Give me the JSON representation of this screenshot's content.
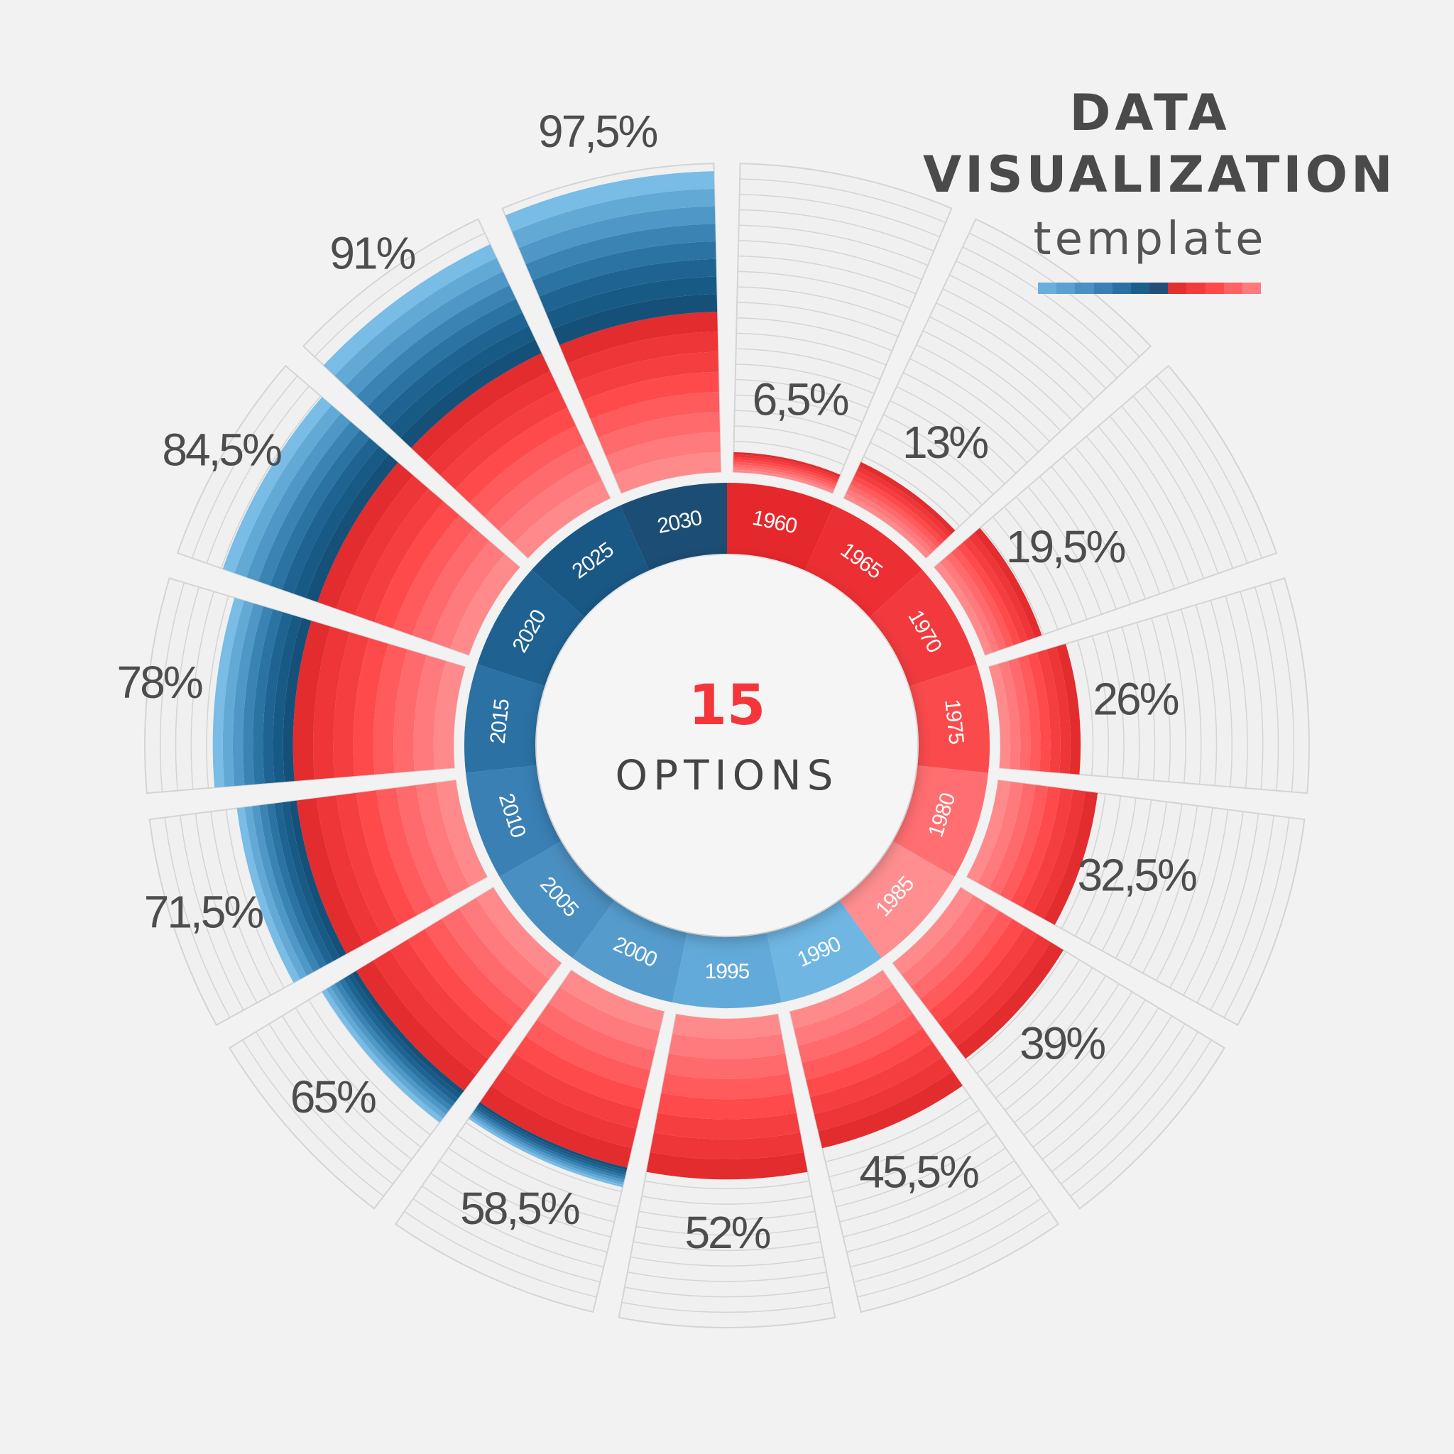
{
  "title": {
    "line1": "DATA",
    "line2": "VISUALIZATION",
    "line3": "template"
  },
  "legend_stripe_colors": [
    "#6aaedc",
    "#5aa0d0",
    "#4a90c3",
    "#3a80b4",
    "#2a70a4",
    "#1d5e8c",
    "#244f78",
    "#e03030",
    "#f33a3c",
    "#ff4a4c",
    "#ff6264",
    "#ff7a7c"
  ],
  "center": {
    "number": "15",
    "label": "OPTIONS"
  },
  "colors": {
    "red_band": [
      "#ff8a8c",
      "#ff7a7c",
      "#ff6a6c",
      "#ff5a5c",
      "#ff4a4c",
      "#f53e40",
      "#ee3537",
      "#e22c2e"
    ],
    "blue_band": [
      "#79bce6",
      "#63a9d6",
      "#4e97c6",
      "#3a84b4",
      "#2b73a3",
      "#1f6393",
      "#175a86",
      "#155079"
    ],
    "track": "#f0f0f0",
    "track_line": "#d4d4d4"
  },
  "chart_data": {
    "type": "radial-bar",
    "years": [
      "1960",
      "1965",
      "1970",
      "1975",
      "1980",
      "1985",
      "1990",
      "1995",
      "2000",
      "2005",
      "2010",
      "2015",
      "2020",
      "2025",
      "2030"
    ],
    "values": [
      6.5,
      13,
      19.5,
      26,
      32.5,
      39,
      45.5,
      52,
      58.5,
      65,
      71.5,
      78,
      84.5,
      91,
      97.5
    ],
    "value_labels": [
      "6,5%",
      "13%",
      "19,5%",
      "26%",
      "32,5%",
      "39%",
      "45,5%",
      "52%",
      "58,5%",
      "65%",
      "71,5%",
      "78%",
      "84,5%",
      "91%",
      "97,5%"
    ],
    "year_ring_colors": [
      "#e5282c",
      "#ec2f33",
      "#f23a3e",
      "#fa4a4c",
      "#ff6e70",
      "#ff8e90",
      "#6fb6e3",
      "#62aad9",
      "#559ccd",
      "#4a8fc1",
      "#3a80b4",
      "#2b71a4",
      "#1f6292",
      "#195785",
      "#1c4d74"
    ],
    "max": 100
  }
}
